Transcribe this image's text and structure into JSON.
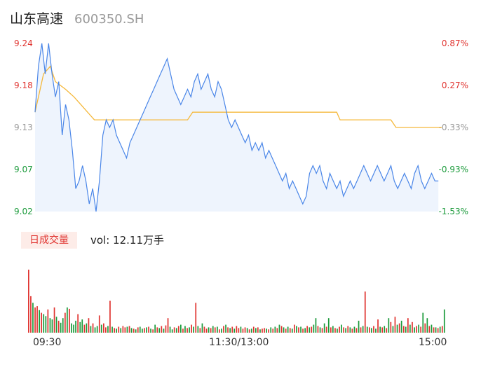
{
  "header": {
    "name": "山东高速",
    "code": "600350.SH"
  },
  "price_axis": {
    "left_labels": [
      "9.24",
      "9.18",
      "9.13",
      "9.07",
      "9.02"
    ],
    "right_labels": [
      "0.87%",
      "0.27%",
      "-0.33%",
      "-0.93%",
      "-1.53%"
    ],
    "colors": [
      "#e0332f",
      "#e0332f",
      "#999999",
      "#1a9a3a",
      "#1a9a3a"
    ]
  },
  "volume_panel": {
    "tab_label": "日成交量",
    "vol_text": "vol: 12.11万手"
  },
  "time_axis": {
    "start": "09:30",
    "mid": "11:30/13:00",
    "end": "15:00"
  },
  "colors": {
    "price_line": "#4a86e8",
    "avg_line": "#f5b83a",
    "up": "#e0332f",
    "down": "#1a9a3a",
    "fill": "#eef4fd"
  },
  "chart_data": {
    "type": "line",
    "ylim": [
      9.02,
      9.24
    ],
    "xlim": [
      0,
      240
    ],
    "series": [
      {
        "name": "",
        "values": [
          [
            0,
            9.15
          ],
          [
            2,
            9.21
          ],
          [
            4,
            9.24
          ],
          [
            6,
            9.2
          ],
          [
            8,
            9.24
          ],
          [
            10,
            9.2
          ],
          [
            12,
            9.17
          ],
          [
            14,
            9.19
          ],
          [
            16,
            9.12
          ],
          [
            18,
            9.16
          ],
          [
            20,
            9.14
          ],
          [
            22,
            9.1
          ],
          [
            24,
            9.05
          ],
          [
            26,
            9.06
          ],
          [
            28,
            9.08
          ],
          [
            30,
            9.06
          ],
          [
            32,
            9.03
          ],
          [
            34,
            9.05
          ],
          [
            36,
            9.02
          ],
          [
            38,
            9.06
          ],
          [
            40,
            9.12
          ],
          [
            42,
            9.14
          ],
          [
            44,
            9.13
          ],
          [
            46,
            9.14
          ],
          [
            48,
            9.12
          ],
          [
            50,
            9.11
          ],
          [
            52,
            9.1
          ],
          [
            54,
            9.09
          ],
          [
            56,
            9.11
          ],
          [
            58,
            9.12
          ],
          [
            60,
            9.13
          ],
          [
            62,
            9.14
          ],
          [
            64,
            9.15
          ],
          [
            66,
            9.16
          ],
          [
            68,
            9.17
          ],
          [
            70,
            9.18
          ],
          [
            72,
            9.19
          ],
          [
            74,
            9.2
          ],
          [
            76,
            9.21
          ],
          [
            78,
            9.22
          ],
          [
            80,
            9.2
          ],
          [
            82,
            9.18
          ],
          [
            84,
            9.17
          ],
          [
            86,
            9.16
          ],
          [
            88,
            9.17
          ],
          [
            90,
            9.18
          ],
          [
            92,
            9.17
          ],
          [
            94,
            9.19
          ],
          [
            96,
            9.2
          ],
          [
            98,
            9.18
          ],
          [
            100,
            9.19
          ],
          [
            102,
            9.2
          ],
          [
            104,
            9.18
          ],
          [
            106,
            9.17
          ],
          [
            108,
            9.19
          ],
          [
            110,
            9.18
          ],
          [
            112,
            9.16
          ],
          [
            114,
            9.14
          ],
          [
            116,
            9.13
          ],
          [
            118,
            9.14
          ],
          [
            120,
            9.13
          ],
          [
            122,
            9.12
          ],
          [
            124,
            9.11
          ],
          [
            126,
            9.12
          ],
          [
            128,
            9.1
          ],
          [
            130,
            9.11
          ],
          [
            132,
            9.1
          ],
          [
            134,
            9.11
          ],
          [
            136,
            9.09
          ],
          [
            138,
            9.1
          ],
          [
            140,
            9.09
          ],
          [
            142,
            9.08
          ],
          [
            144,
            9.07
          ],
          [
            146,
            9.06
          ],
          [
            148,
            9.07
          ],
          [
            150,
            9.05
          ],
          [
            152,
            9.06
          ],
          [
            154,
            9.05
          ],
          [
            156,
            9.04
          ],
          [
            158,
            9.03
          ],
          [
            160,
            9.04
          ],
          [
            162,
            9.07
          ],
          [
            164,
            9.08
          ],
          [
            166,
            9.07
          ],
          [
            168,
            9.08
          ],
          [
            170,
            9.06
          ],
          [
            172,
            9.05
          ],
          [
            174,
            9.07
          ],
          [
            176,
            9.06
          ],
          [
            178,
            9.05
          ],
          [
            180,
            9.06
          ],
          [
            182,
            9.04
          ],
          [
            184,
            9.05
          ],
          [
            186,
            9.06
          ],
          [
            188,
            9.05
          ],
          [
            190,
            9.06
          ],
          [
            192,
            9.07
          ],
          [
            194,
            9.08
          ],
          [
            196,
            9.07
          ],
          [
            198,
            9.06
          ],
          [
            200,
            9.07
          ],
          [
            202,
            9.08
          ],
          [
            204,
            9.07
          ],
          [
            206,
            9.06
          ],
          [
            208,
            9.07
          ],
          [
            210,
            9.08
          ],
          [
            212,
            9.06
          ],
          [
            214,
            9.05
          ],
          [
            216,
            9.06
          ],
          [
            218,
            9.07
          ],
          [
            220,
            9.06
          ],
          [
            222,
            9.05
          ],
          [
            224,
            9.07
          ],
          [
            226,
            9.08
          ],
          [
            228,
            9.06
          ],
          [
            230,
            9.05
          ],
          [
            232,
            9.06
          ],
          [
            234,
            9.07
          ],
          [
            236,
            9.06
          ],
          [
            238,
            9.06
          ]
        ]
      },
      {
        "name": "",
        "values": [
          [
            0,
            9.15
          ],
          [
            5,
            9.2
          ],
          [
            9,
            9.21
          ],
          [
            12,
            9.19
          ],
          [
            18,
            9.18
          ],
          [
            23,
            9.17
          ],
          [
            27,
            9.16
          ],
          [
            31,
            9.15
          ],
          [
            35,
            9.14
          ],
          [
            39,
            9.14
          ],
          [
            50,
            9.14
          ],
          [
            60,
            9.14
          ],
          [
            70,
            9.14
          ],
          [
            80,
            9.14
          ],
          [
            90,
            9.14
          ],
          [
            93,
            9.15
          ],
          [
            110,
            9.15
          ],
          [
            130,
            9.15
          ],
          [
            150,
            9.15
          ],
          [
            170,
            9.15
          ],
          [
            178,
            9.15
          ],
          [
            180,
            9.14
          ],
          [
            200,
            9.14
          ],
          [
            210,
            9.14
          ],
          [
            213,
            9.13
          ],
          [
            225,
            9.13
          ],
          [
            240,
            9.13
          ]
        ]
      }
    ],
    "volume": [
      [
        "u",
        95
      ],
      [
        "u",
        55
      ],
      [
        "d",
        45
      ],
      [
        "u",
        38
      ],
      [
        "u",
        40
      ],
      [
        "d",
        34
      ],
      [
        "u",
        30
      ],
      [
        "d",
        28
      ],
      [
        "d",
        25
      ],
      [
        "u",
        35
      ],
      [
        "d",
        22
      ],
      [
        "d",
        20
      ],
      [
        "u",
        38
      ],
      [
        "d",
        24
      ],
      [
        "u",
        18
      ],
      [
        "d",
        15
      ],
      [
        "d",
        22
      ],
      [
        "u",
        30
      ],
      [
        "d",
        38
      ],
      [
        "u",
        36
      ],
      [
        "d",
        14
      ],
      [
        "d",
        12
      ],
      [
        "d",
        18
      ],
      [
        "u",
        28
      ],
      [
        "d",
        16
      ],
      [
        "d",
        20
      ],
      [
        "u",
        12
      ],
      [
        "d",
        14
      ],
      [
        "u",
        22
      ],
      [
        "d",
        10
      ],
      [
        "u",
        14
      ],
      [
        "d",
        8
      ],
      [
        "d",
        10
      ],
      [
        "u",
        26
      ],
      [
        "d",
        12
      ],
      [
        "u",
        14
      ],
      [
        "u",
        8
      ],
      [
        "d",
        10
      ],
      [
        "u",
        48
      ],
      [
        "d",
        9
      ],
      [
        "u",
        7
      ],
      [
        "d",
        6
      ],
      [
        "u",
        9
      ],
      [
        "d",
        7
      ],
      [
        "u",
        10
      ],
      [
        "u",
        8
      ],
      [
        "d",
        9
      ],
      [
        "u",
        10
      ],
      [
        "d",
        7
      ],
      [
        "u",
        6
      ],
      [
        "d",
        5
      ],
      [
        "u",
        8
      ],
      [
        "d",
        9
      ],
      [
        "d",
        6
      ],
      [
        "u",
        7
      ],
      [
        "d",
        8
      ],
      [
        "u",
        9
      ],
      [
        "d",
        6
      ],
      [
        "u",
        5
      ],
      [
        "d",
        12
      ],
      [
        "u",
        8
      ],
      [
        "d",
        7
      ],
      [
        "u",
        10
      ],
      [
        "d",
        6
      ],
      [
        "u",
        11
      ],
      [
        "u",
        22
      ],
      [
        "d",
        9
      ],
      [
        "d",
        5
      ],
      [
        "u",
        8
      ],
      [
        "d",
        7
      ],
      [
        "u",
        10
      ],
      [
        "d",
        12
      ],
      [
        "u",
        6
      ],
      [
        "d",
        10
      ],
      [
        "u",
        7
      ],
      [
        "d",
        8
      ],
      [
        "u",
        12
      ],
      [
        "d",
        9
      ],
      [
        "u",
        45
      ],
      [
        "d",
        10
      ],
      [
        "u",
        7
      ],
      [
        "d",
        14
      ],
      [
        "u",
        9
      ],
      [
        "u",
        6
      ],
      [
        "d",
        8
      ],
      [
        "u",
        7
      ],
      [
        "d",
        10
      ],
      [
        "u",
        8
      ],
      [
        "d",
        9
      ],
      [
        "u",
        5
      ],
      [
        "d",
        6
      ],
      [
        "u",
        10
      ],
      [
        "d",
        12
      ],
      [
        "u",
        8
      ],
      [
        "d",
        7
      ],
      [
        "u",
        9
      ],
      [
        "d",
        6
      ],
      [
        "u",
        10
      ],
      [
        "u",
        7
      ],
      [
        "d",
        9
      ],
      [
        "u",
        6
      ],
      [
        "u",
        8
      ],
      [
        "d",
        7
      ],
      [
        "u",
        5
      ],
      [
        "d",
        6
      ],
      [
        "u",
        9
      ],
      [
        "d",
        7
      ],
      [
        "u",
        8
      ],
      [
        "d",
        5
      ],
      [
        "u",
        6
      ],
      [
        "u",
        7
      ],
      [
        "d",
        6
      ],
      [
        "u",
        5
      ],
      [
        "d",
        8
      ],
      [
        "u",
        6
      ],
      [
        "d",
        9
      ],
      [
        "u",
        7
      ],
      [
        "d",
        12
      ],
      [
        "u",
        10
      ],
      [
        "d",
        8
      ],
      [
        "u",
        6
      ],
      [
        "d",
        9
      ],
      [
        "u",
        7
      ],
      [
        "d",
        6
      ],
      [
        "u",
        12
      ],
      [
        "d",
        10
      ],
      [
        "u",
        8
      ],
      [
        "d",
        9
      ],
      [
        "u",
        6
      ],
      [
        "d",
        7
      ],
      [
        "u",
        10
      ],
      [
        "d",
        8
      ],
      [
        "u",
        9
      ],
      [
        "d",
        12
      ],
      [
        "d",
        22
      ],
      [
        "u",
        10
      ],
      [
        "d",
        8
      ],
      [
        "u",
        7
      ],
      [
        "d",
        14
      ],
      [
        "u",
        9
      ],
      [
        "d",
        22
      ],
      [
        "u",
        8
      ],
      [
        "d",
        10
      ],
      [
        "u",
        7
      ],
      [
        "d",
        6
      ],
      [
        "u",
        9
      ],
      [
        "d",
        12
      ],
      [
        "u",
        8
      ],
      [
        "d",
        7
      ],
      [
        "u",
        10
      ],
      [
        "d",
        8
      ],
      [
        "u",
        6
      ],
      [
        "d",
        9
      ],
      [
        "u",
        7
      ],
      [
        "d",
        18
      ],
      [
        "u",
        8
      ],
      [
        "d",
        10
      ],
      [
        "u",
        62
      ],
      [
        "d",
        9
      ],
      [
        "u",
        8
      ],
      [
        "d",
        7
      ],
      [
        "u",
        10
      ],
      [
        "d",
        6
      ],
      [
        "u",
        20
      ],
      [
        "d",
        9
      ],
      [
        "u",
        8
      ],
      [
        "d",
        10
      ],
      [
        "u",
        7
      ],
      [
        "d",
        22
      ],
      [
        "u",
        16
      ],
      [
        "d",
        10
      ],
      [
        "u",
        24
      ],
      [
        "d",
        12
      ],
      [
        "u",
        14
      ],
      [
        "d",
        18
      ],
      [
        "u",
        10
      ],
      [
        "d",
        9
      ],
      [
        "u",
        22
      ],
      [
        "d",
        12
      ],
      [
        "u",
        16
      ],
      [
        "d",
        8
      ],
      [
        "u",
        10
      ],
      [
        "d",
        12
      ],
      [
        "u",
        9
      ],
      [
        "d",
        30
      ],
      [
        "u",
        14
      ],
      [
        "d",
        22
      ],
      [
        "u",
        10
      ],
      [
        "d",
        12
      ],
      [
        "u",
        8
      ],
      [
        "d",
        8
      ],
      [
        "u",
        7
      ],
      [
        "d",
        9
      ],
      [
        "u",
        10
      ],
      [
        "d",
        35
      ]
    ]
  }
}
